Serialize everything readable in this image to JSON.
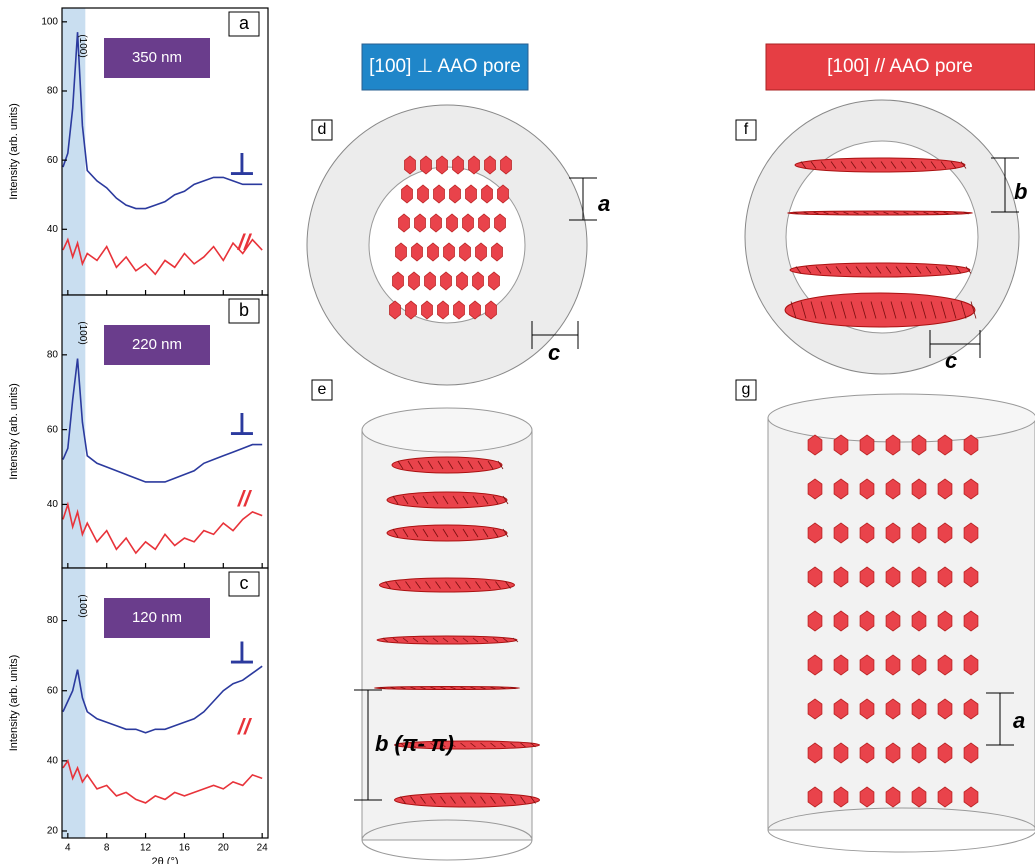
{
  "chart_data": [
    {
      "type": "line",
      "panel": "a",
      "ylabel": "Intensity (arb. units)",
      "xlim": [
        3.4,
        24.6
      ],
      "xticks": [
        4,
        8,
        12,
        16,
        20,
        24
      ],
      "ylim": [
        21,
        104
      ],
      "yticks": [
        40,
        60,
        80,
        100
      ],
      "band": [
        3.4,
        5.8
      ],
      "peak_label": "(100)",
      "size_label": "350 nm",
      "perp_label": "⊥",
      "par_label": "//",
      "x": [
        3.5,
        4,
        4.5,
        5,
        5.5,
        6,
        7,
        8,
        9,
        10,
        11,
        12,
        13,
        14,
        15,
        16,
        17,
        18,
        19,
        20,
        21,
        22,
        23,
        24
      ],
      "series": [
        {
          "color": "#2b3a9e",
          "values": [
            58,
            62,
            75,
            97,
            70,
            57,
            54,
            52,
            49,
            47,
            46,
            46,
            47,
            48,
            50,
            51,
            53,
            54,
            55,
            55,
            54,
            53,
            53,
            53
          ]
        },
        {
          "color": "#e8333a",
          "values": [
            34,
            37,
            32,
            36,
            30,
            33,
            31,
            35,
            29,
            32,
            28,
            30,
            27,
            31,
            29,
            33,
            30,
            32,
            35,
            31,
            36,
            33,
            37,
            34
          ]
        }
      ]
    },
    {
      "type": "line",
      "panel": "b",
      "ylabel": "Intensity (arb. units)",
      "xlim": [
        3.4,
        24.6
      ],
      "xticks": [
        4,
        8,
        12,
        16,
        20,
        24
      ],
      "ylim": [
        23,
        96
      ],
      "yticks": [
        40,
        60,
        80
      ],
      "band": [
        3.4,
        5.8
      ],
      "peak_label": "(100)",
      "size_label": "220 nm",
      "perp_label": "⊥",
      "par_label": "//",
      "x": [
        3.5,
        4,
        4.5,
        5,
        5.5,
        6,
        7,
        8,
        9,
        10,
        11,
        12,
        13,
        14,
        15,
        16,
        17,
        18,
        19,
        20,
        21,
        22,
        23,
        24
      ],
      "series": [
        {
          "color": "#2b3a9e",
          "values": [
            52,
            55,
            68,
            79,
            62,
            53,
            51,
            50,
            49,
            48,
            47,
            46,
            46,
            46,
            47,
            48,
            49,
            51,
            52,
            53,
            54,
            55,
            56,
            56
          ]
        },
        {
          "color": "#e8333a",
          "values": [
            36,
            40,
            34,
            38,
            32,
            35,
            30,
            33,
            28,
            31,
            27,
            30,
            28,
            32,
            29,
            31,
            30,
            33,
            32,
            35,
            33,
            36,
            38,
            37
          ]
        }
      ]
    },
    {
      "type": "line",
      "panel": "c",
      "ylabel": "Intensity (arb. units)",
      "xlabel": "2θ (°)",
      "xlim": [
        3.4,
        24.6
      ],
      "xticks": [
        4,
        8,
        12,
        16,
        20,
        24
      ],
      "ylim": [
        18,
        95
      ],
      "yticks": [
        20,
        40,
        60,
        80
      ],
      "band": [
        3.4,
        5.8
      ],
      "peak_label": "(100)",
      "size_label": "120 nm",
      "perp_label": "⊥",
      "par_label": "//",
      "x": [
        3.5,
        4,
        4.5,
        5,
        5.5,
        6,
        7,
        8,
        9,
        10,
        11,
        12,
        13,
        14,
        15,
        16,
        17,
        18,
        19,
        20,
        21,
        22,
        23,
        24
      ],
      "series": [
        {
          "color": "#2b3a9e",
          "values": [
            54,
            57,
            60,
            66,
            58,
            54,
            52,
            51,
            50,
            49,
            49,
            48,
            49,
            49,
            50,
            51,
            52,
            54,
            57,
            60,
            62,
            63,
            65,
            67
          ]
        },
        {
          "color": "#e8333a",
          "values": [
            38,
            40,
            35,
            38,
            34,
            36,
            32,
            33,
            30,
            31,
            29,
            28,
            30,
            29,
            31,
            30,
            31,
            32,
            33,
            32,
            34,
            33,
            36,
            35
          ]
        }
      ]
    }
  ],
  "schematics": {
    "perp_header": "[100] ⊥ AAO pore",
    "par_header": "[100] // AAO pore",
    "d": {
      "panel": "d",
      "dim1": "a",
      "dim2": "c"
    },
    "e": {
      "panel": "e",
      "dim": "b (π- π)"
    },
    "f": {
      "panel": "f",
      "dim1": "b",
      "dim2": "c"
    },
    "g": {
      "panel": "g",
      "dim": "a"
    }
  }
}
